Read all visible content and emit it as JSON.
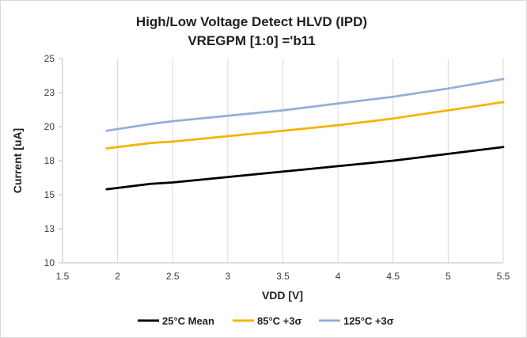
{
  "chart_data": {
    "type": "line",
    "title_lines": [
      "High/Low Voltage Detect HLVD (IPD)",
      "VREGPM [1:0] ='b11"
    ],
    "xlabel": "VDD [V]",
    "ylabel": "Current [uA]",
    "xlim": [
      1.5,
      5.5
    ],
    "ylim": [
      10,
      25
    ],
    "x_ticks": [
      1.5,
      2,
      2.5,
      3,
      3.5,
      4,
      4.5,
      5,
      5.5
    ],
    "x_tick_labels": [
      "1.5",
      "2",
      "2.5",
      "3",
      "3.5",
      "4",
      "4.5",
      "5",
      "5.5"
    ],
    "y_ticks": [
      10,
      12.5,
      15,
      17.5,
      20,
      22.5,
      25
    ],
    "y_tick_labels": [
      "10",
      "13",
      "15",
      "18",
      "20",
      "23",
      "25"
    ],
    "grid": "vertical",
    "legend_position": "bottom",
    "x": [
      1.9,
      2.3,
      2.5,
      3.0,
      3.5,
      4.0,
      4.5,
      5.0,
      5.5
    ],
    "series": [
      {
        "name": "25°C Mean",
        "color": "#000000",
        "values": [
          15.4,
          15.8,
          15.9,
          16.3,
          16.7,
          17.1,
          17.5,
          18.0,
          18.5
        ]
      },
      {
        "name": "85°C +3σ",
        "color": "#f5b400",
        "values": [
          18.4,
          18.8,
          18.9,
          19.3,
          19.7,
          20.1,
          20.6,
          21.2,
          21.8
        ]
      },
      {
        "name": "125°C +3σ",
        "color": "#94aedb",
        "values": [
          19.7,
          20.2,
          20.4,
          20.8,
          21.2,
          21.7,
          22.2,
          22.8,
          23.5
        ]
      }
    ]
  }
}
